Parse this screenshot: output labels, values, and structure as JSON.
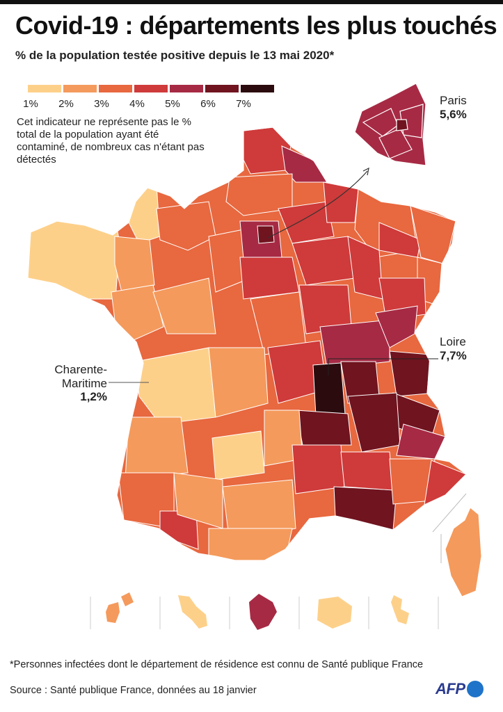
{
  "title": "Covid-19 : départements les plus touchés",
  "subtitle": "% de la population testée positive depuis le 13 mai 2020*",
  "legend": {
    "items": [
      {
        "label": "1%",
        "color": "#fdd08a"
      },
      {
        "label": "2%",
        "color": "#f49a5c"
      },
      {
        "label": "3%",
        "color": "#e8683f"
      },
      {
        "label": "4%",
        "color": "#cf3a3a"
      },
      {
        "label": "5%",
        "color": "#a72a44"
      },
      {
        "label": "6%",
        "color": "#70141f"
      },
      {
        "label": "7%",
        "color": "#2c0b0e"
      }
    ]
  },
  "note": "Cet indicateur ne représente pas le % total de la population ayant été contaminé, de nombreux cas n'étant pas détectés",
  "callouts": {
    "paris": {
      "name": "Paris",
      "value": "5,6%"
    },
    "loire": {
      "name": "Loire",
      "value": "7,7%"
    },
    "charente": {
      "name_line1": "Charente-",
      "name_line2": "Maritime",
      "value": "1,2%"
    }
  },
  "footnote": "*Personnes infectées dont le département de résidence est connu de Santé publique France",
  "source": "Source : Santé publique France, données au 18 janvier",
  "logo": "AFP"
}
